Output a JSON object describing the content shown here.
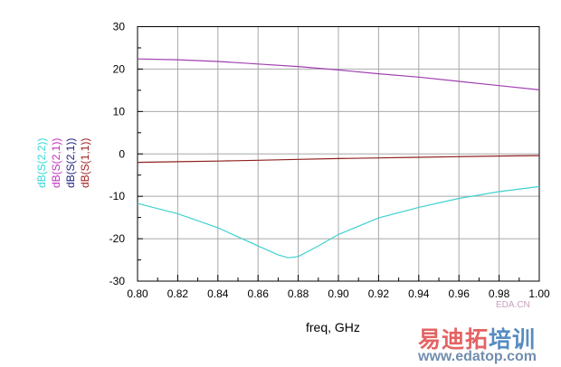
{
  "chart_data": {
    "type": "line",
    "xlabel": "freq, GHz",
    "ylabel": "",
    "xlim": [
      0.8,
      1.0
    ],
    "ylim": [
      -30,
      30
    ],
    "xticks": [
      "0.80",
      "0.82",
      "0.84",
      "0.86",
      "0.88",
      "0.90",
      "0.92",
      "0.94",
      "0.96",
      "0.98",
      "1.00"
    ],
    "yticks": [
      "30",
      "20",
      "10",
      "0",
      "-10",
      "-20",
      "-30"
    ],
    "grid": true,
    "legend_placement": "left, vertical",
    "legend": [
      {
        "name": "dB(S(2,2))",
        "color": "#33d6d6"
      },
      {
        "name": "dB(S(2,1))",
        "color": "#c030c0"
      },
      {
        "name": "dB(S(2,1))",
        "color": "#202080"
      },
      {
        "name": "dB(S(1,1))",
        "color": "#a02020"
      }
    ],
    "series": [
      {
        "name": "dB(S(2,1))",
        "color": "#a040b0",
        "x": [
          0.8,
          0.82,
          0.84,
          0.86,
          0.88,
          0.9,
          0.92,
          0.94,
          0.96,
          0.98,
          1.0
        ],
        "y": [
          22.4,
          22.2,
          21.8,
          21.2,
          20.6,
          19.8,
          18.9,
          18.1,
          17.1,
          16.1,
          15.1
        ]
      },
      {
        "name": "dB(S(1,1))",
        "color": "#902020",
        "x": [
          0.8,
          0.82,
          0.84,
          0.86,
          0.88,
          0.9,
          0.92,
          0.94,
          0.96,
          0.98,
          1.0
        ],
        "y": [
          -2.0,
          -1.85,
          -1.7,
          -1.5,
          -1.3,
          -1.1,
          -0.95,
          -0.8,
          -0.65,
          -0.5,
          -0.4
        ]
      },
      {
        "name": "dB(S(2,2))",
        "color": "#40d0d0",
        "x": [
          0.8,
          0.82,
          0.84,
          0.86,
          0.87,
          0.875,
          0.88,
          0.89,
          0.9,
          0.92,
          0.94,
          0.96,
          0.98,
          1.0
        ],
        "y": [
          -11.7,
          -14.1,
          -17.4,
          -21.7,
          -23.8,
          -24.5,
          -24.2,
          -21.7,
          -19.0,
          -15.1,
          -12.6,
          -10.5,
          -8.9,
          -7.7
        ]
      }
    ]
  },
  "watermark": {
    "brand_red": "易迪拓",
    "brand_blue": "培训",
    "url": "www.edatop.com",
    "small": "EDA.CN"
  }
}
